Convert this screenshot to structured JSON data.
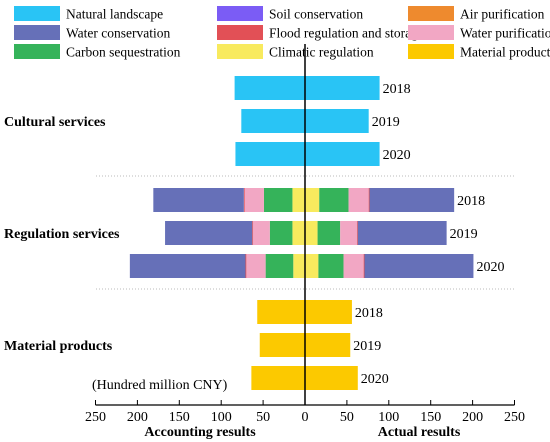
{
  "chart_data": {
    "type": "bar",
    "orientation": "horizontal-diverging",
    "legend": {
      "placement": "top",
      "items": [
        {
          "key": "natural",
          "label": "Natural landscape",
          "color": "#29C4F5"
        },
        {
          "key": "soil",
          "label": "Soil conservation",
          "color": "#7B5CF5"
        },
        {
          "key": "air",
          "label": "Air purification",
          "color": "#EE8A2E"
        },
        {
          "key": "water_cons",
          "label": "Water conservation",
          "color": "#6670B8"
        },
        {
          "key": "flood",
          "label": "Flood regulation and storage",
          "color": "#E25056"
        },
        {
          "key": "water_pur",
          "label": "Water purification",
          "color": "#F2A7C4"
        },
        {
          "key": "carbon",
          "label": "Carbon sequestration",
          "color": "#35B35A"
        },
        {
          "key": "climatic",
          "label": "Climatic regulation",
          "color": "#F8EA5E"
        },
        {
          "key": "material",
          "label": "Material products",
          "color": "#FCC900"
        }
      ]
    },
    "x_axis": {
      "ticks": [
        250,
        200,
        150,
        100,
        50,
        0,
        50,
        100,
        150,
        200,
        250
      ],
      "range": [
        -250,
        250
      ],
      "left_label": "Accounting results",
      "right_label": "Actual results",
      "unit": "(Hundred million CNY)"
    },
    "groups": [
      {
        "name": "Cultural services",
        "rows": [
          {
            "year": "2018",
            "accounting": [
              {
                "key": "natural",
                "value": 84
              }
            ],
            "actual": [
              {
                "key": "natural",
                "value": 89
              }
            ]
          },
          {
            "year": "2019",
            "accounting": [
              {
                "key": "natural",
                "value": 76
              }
            ],
            "actual": [
              {
                "key": "natural",
                "value": 76
              }
            ]
          },
          {
            "year": "2020",
            "accounting": [
              {
                "key": "natural",
                "value": 83
              }
            ],
            "actual": [
              {
                "key": "natural",
                "value": 89
              }
            ]
          }
        ]
      },
      {
        "name": "Regulation services",
        "rows": [
          {
            "year": "2018",
            "accounting": [
              {
                "key": "climatic",
                "value": 15
              },
              {
                "key": "carbon",
                "value": 34
              },
              {
                "key": "water_pur",
                "value": 23
              },
              {
                "key": "flood",
                "value": 1
              },
              {
                "key": "water_cons",
                "value": 108
              }
            ],
            "actual": [
              {
                "key": "climatic",
                "value": 17
              },
              {
                "key": "carbon",
                "value": 35
              },
              {
                "key": "water_pur",
                "value": 24
              },
              {
                "key": "flood",
                "value": 1
              },
              {
                "key": "water_cons",
                "value": 101
              }
            ]
          },
          {
            "year": "2019",
            "accounting": [
              {
                "key": "climatic",
                "value": 15
              },
              {
                "key": "carbon",
                "value": 27
              },
              {
                "key": "water_pur",
                "value": 20
              },
              {
                "key": "flood",
                "value": 1
              },
              {
                "key": "water_cons",
                "value": 104
              }
            ],
            "actual": [
              {
                "key": "climatic",
                "value": 15
              },
              {
                "key": "carbon",
                "value": 27
              },
              {
                "key": "water_pur",
                "value": 20
              },
              {
                "key": "flood",
                "value": 1
              },
              {
                "key": "water_cons",
                "value": 106
              }
            ]
          },
          {
            "year": "2020",
            "accounting": [
              {
                "key": "climatic",
                "value": 14
              },
              {
                "key": "carbon",
                "value": 33
              },
              {
                "key": "water_pur",
                "value": 23
              },
              {
                "key": "flood",
                "value": 1
              },
              {
                "key": "water_cons",
                "value": 138
              }
            ],
            "actual": [
              {
                "key": "climatic",
                "value": 16
              },
              {
                "key": "carbon",
                "value": 30
              },
              {
                "key": "water_pur",
                "value": 24
              },
              {
                "key": "flood",
                "value": 1
              },
              {
                "key": "water_cons",
                "value": 130
              }
            ]
          }
        ]
      },
      {
        "name": "Material products",
        "rows": [
          {
            "year": "2018",
            "accounting": [
              {
                "key": "material",
                "value": 57
              }
            ],
            "actual": [
              {
                "key": "material",
                "value": 56
              }
            ]
          },
          {
            "year": "2019",
            "accounting": [
              {
                "key": "material",
                "value": 54
              }
            ],
            "actual": [
              {
                "key": "material",
                "value": 54
              }
            ]
          },
          {
            "year": "2020",
            "accounting": [
              {
                "key": "material",
                "value": 64
              }
            ],
            "actual": [
              {
                "key": "material",
                "value": 63
              }
            ]
          }
        ]
      }
    ],
    "grid": false
  }
}
